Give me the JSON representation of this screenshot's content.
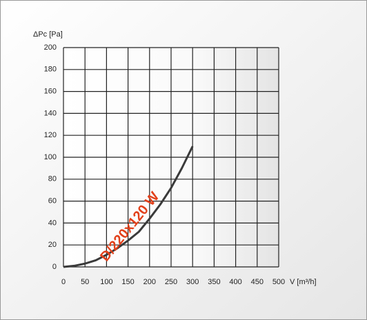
{
  "chart_data": {
    "type": "line",
    "y_label": "ΔPc [Pa]",
    "x_label": "V [m³/h]",
    "annotation": "D/220x120 W",
    "x": [
      0,
      25,
      50,
      75,
      100,
      125,
      150,
      175,
      200,
      225,
      250,
      275,
      300
    ],
    "series": [
      {
        "name": "D/220x120 W",
        "color": "#3a3a3a",
        "values": [
          0,
          1,
          3,
          6,
          11,
          17,
          24,
          32,
          44,
          57,
          72,
          90,
          110
        ]
      }
    ],
    "annotation_color": "#e2401a",
    "xlim": [
      0,
      500
    ],
    "ylim": [
      0,
      200
    ],
    "xticks": [
      0,
      50,
      100,
      150,
      200,
      250,
      300,
      350,
      400,
      450,
      500
    ],
    "yticks": [
      0,
      20,
      40,
      60,
      80,
      100,
      120,
      140,
      160,
      180,
      200
    ],
    "grid": true
  }
}
